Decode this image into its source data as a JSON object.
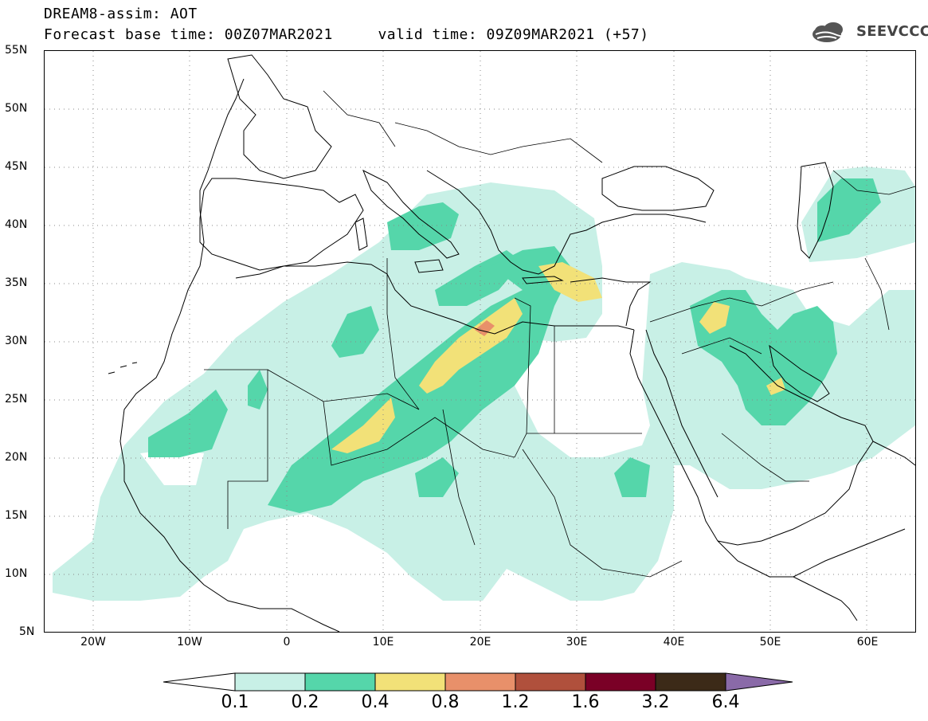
{
  "header": {
    "title_line1": "DREAM8-assim: AOT",
    "title_line2": "Forecast base time: 00Z07MAR2021     valid time: 09Z09MAR2021 (+57)",
    "logo_text": "SEEVCCC"
  },
  "map": {
    "lat_labels": [
      "55N",
      "50N",
      "45N",
      "40N",
      "35N",
      "30N",
      "25N",
      "20N",
      "15N",
      "10N",
      "5N"
    ],
    "lon_labels": [
      "20W",
      "10W",
      "0",
      "10E",
      "20E",
      "30E",
      "40E",
      "50E",
      "60E"
    ],
    "lat_range": [
      5,
      55
    ],
    "lon_range": [
      -25,
      65
    ],
    "grid": "dotted"
  },
  "legend": {
    "labels": [
      "0.1",
      "0.2",
      "0.4",
      "0.8",
      "1.2",
      "1.6",
      "3.2",
      "6.4"
    ],
    "colors": [
      "#ffffff",
      "#c8f0e6",
      "#55d6aa",
      "#f2e178",
      "#e8906a",
      "#b0503c",
      "#7a0026",
      "#3c2a18",
      "#8a6aa8"
    ]
  }
}
